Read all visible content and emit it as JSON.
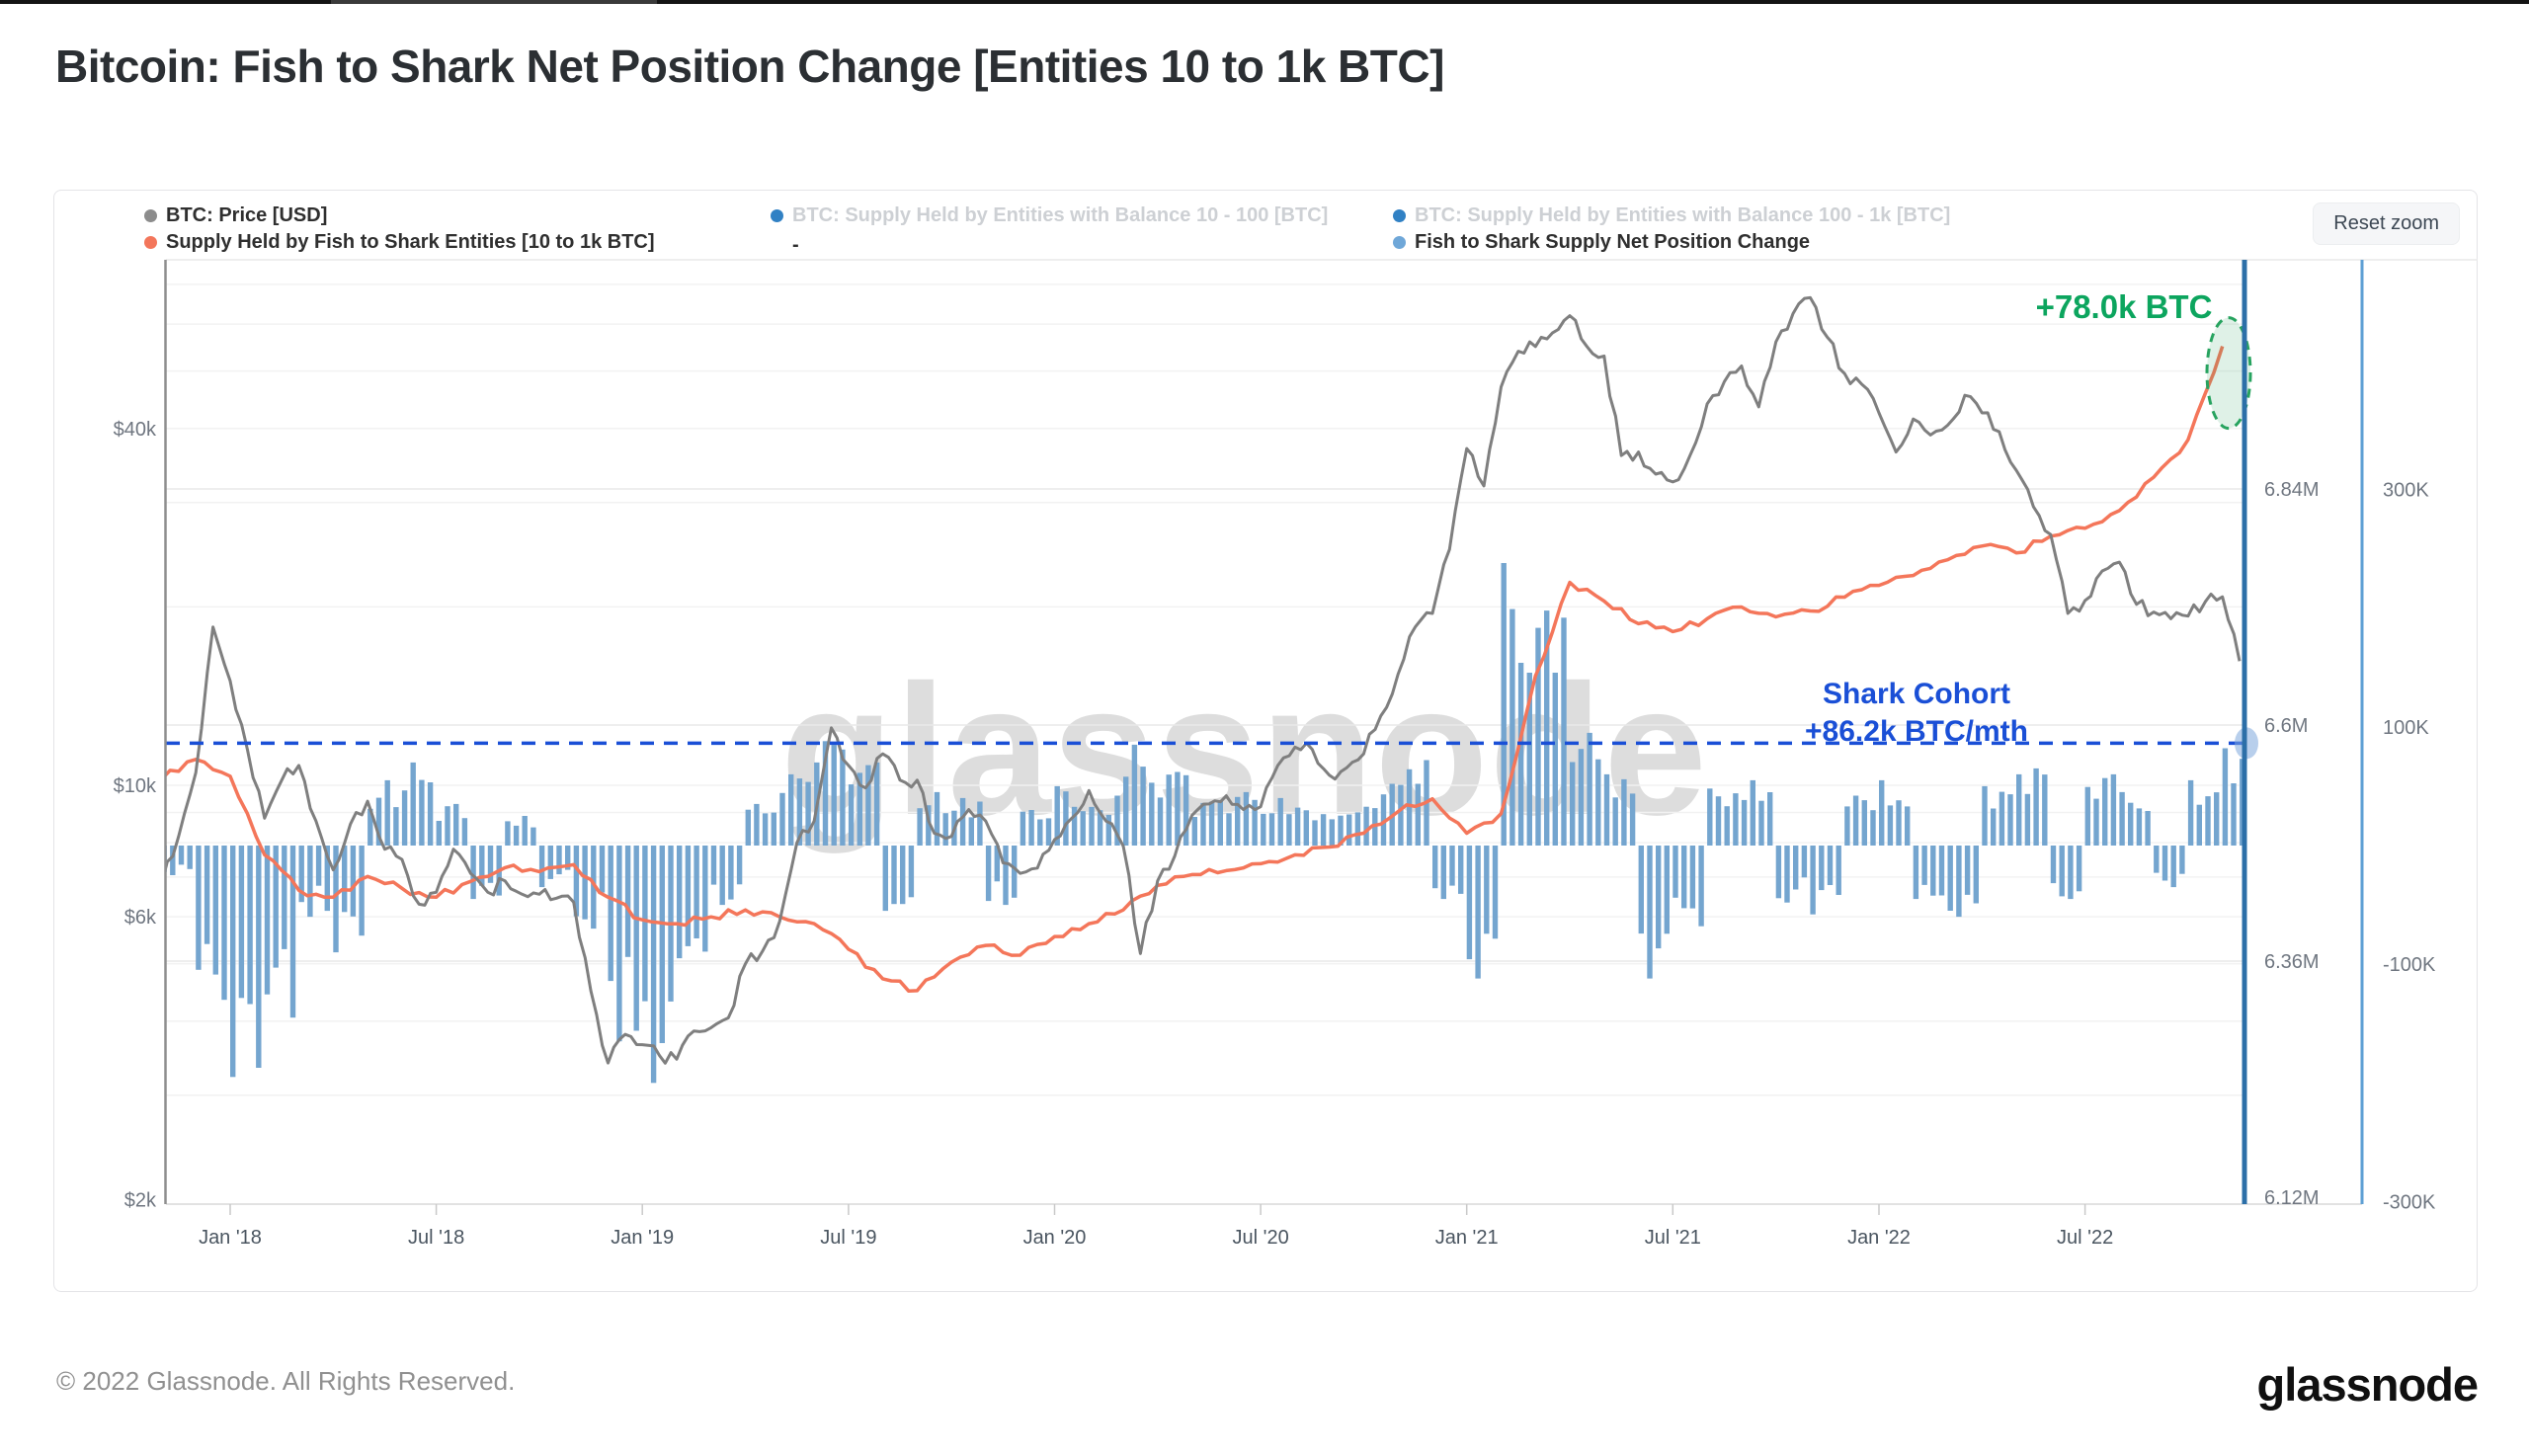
{
  "title": "Bitcoin: Fish to Shark Net Position Change [Entities 10 to 1k BTC]",
  "toolbar": {
    "reset_zoom_label": "Reset zoom"
  },
  "legend": {
    "items": [
      {
        "label": "BTC: Price [USD]",
        "dot": "#8c8c8c",
        "active": true
      },
      {
        "label": "Supply Held by Fish to Shark Entities [10 to 1k BTC]",
        "dot": "#f3765b",
        "active": true
      },
      {
        "label": "BTC: Supply Held by Entities with Balance 10 - 100 [BTC]",
        "dot": "#3181c4",
        "active": false
      },
      {
        "label": "-",
        "dot": null,
        "active": true
      },
      {
        "label": "BTC: Supply Held by Entities with Balance 100 - 1k [BTC]",
        "dot": "#3181c4",
        "active": false
      },
      {
        "label": "Fish to Shark Supply Net Position Change",
        "dot": "#6fa7d8",
        "active": true
      }
    ]
  },
  "annotations": {
    "price_spike_label": "+78.0k BTC",
    "shark_line1": "Shark Cohort",
    "shark_line2": "+86.2k BTC/mth"
  },
  "watermark": "glassnode",
  "footer": {
    "copyright": "© 2022 Glassnode. All Rights Reserved.",
    "logo_text": "glassnode"
  },
  "colors": {
    "price_line": "#7f7f7f",
    "supply_line": "#f4765a",
    "net_bars": "#74a5cf",
    "right_axis_dark_blue": "#2c6fa8",
    "right_axis_light_blue": "#5e9fd4",
    "left_axis_gray": "#8e8e8e",
    "dashed_reference_blue": "#1a4fd6",
    "annotation_green": "#0ca55e",
    "highlight_ellipse_green": "#27a35f",
    "inactive_legend_text": "#cdd0d4",
    "active_legend_text": "#2f2f2f",
    "axis_label_gray": "#6f7680",
    "x_label_gray": "#4a5560"
  },
  "chart_data": {
    "type": "mixed",
    "title": "Bitcoin: Fish to Shark Net Position Change [Entities 10 to 1k BTC]",
    "x_axis": {
      "start_month": "2017-11",
      "end_month": "2022-11",
      "tick_labels": [
        "Jan '18",
        "Jul '18",
        "Jan '19",
        "Jul '19",
        "Jan '20",
        "Jul '20",
        "Jan '21",
        "Jul '21",
        "Jan '22",
        "Jul '22"
      ]
    },
    "y_axis_price": {
      "scale": "log",
      "ticks": [
        "$40k",
        "$10k",
        "$6k",
        "$2k"
      ],
      "values": [
        40000,
        10000,
        6000,
        2000
      ],
      "range": [
        2000,
        77000
      ]
    },
    "y_axis_supply": {
      "scale": "linear",
      "ticks": [
        "6.84M",
        "6.6M",
        "6.36M",
        "6.12M"
      ],
      "values": [
        6.84,
        6.6,
        6.36,
        6.12
      ],
      "range": [
        6.11,
        7.07
      ],
      "unit": "M BTC"
    },
    "y_axis_net": {
      "scale": "linear",
      "ticks": [
        "300K",
        "100K",
        "-100K",
        "-300K"
      ],
      "values": [
        300,
        100,
        -100,
        -300
      ],
      "range": [
        -302,
        493
      ],
      "unit": "K BTC/month"
    },
    "series": [
      {
        "name": "BTC: Price [USD]",
        "type": "line",
        "axis": "y_axis_price",
        "color": "#7f7f7f",
        "x_start_month_offset": -2,
        "x_step_months": 0.5,
        "values": [
          6800,
          8200,
          10500,
          18500,
          15000,
          11500,
          8800,
          10200,
          10800,
          8700,
          7200,
          8600,
          9400,
          7800,
          7500,
          6300,
          6600,
          7800,
          7100,
          6600,
          6900,
          6550,
          6550,
          6450,
          6350,
          4500,
          3400,
          3800,
          3650,
          3500,
          3450,
          3850,
          3900,
          4050,
          5000,
          5250,
          5900,
          8000,
          8700,
          12500,
          10800,
          9900,
          11300,
          10200,
          10200,
          8300,
          8200,
          9100,
          8700,
          7400,
          7100,
          7250,
          8100,
          8800,
          9800,
          8700,
          7900,
          5200,
          6900,
          7600,
          8900,
          9300,
          9600,
          9100,
          9200,
          10800,
          11600,
          11500,
          10400,
          10700,
          11300,
          13100,
          15400,
          18500,
          19500,
          25000,
          37000,
          32000,
          47000,
          54000,
          55000,
          58000,
          62000,
          55000,
          53000,
          36000,
          36500,
          33500,
          32500,
          36000,
          44000,
          48000,
          51000,
          43500,
          56000,
          62500,
          66500,
          57000,
          49500,
          47500,
          42500,
          36500,
          41500,
          39000,
          40500,
          45500,
          42500,
          39500,
          34000,
          29500,
          26500,
          19500,
          20500,
          23000,
          23800,
          20200,
          19600,
          19100,
          19300,
          20400,
          20800,
          16200
        ]
      },
      {
        "name": "Supply Held by Fish to Shark Entities [10 to 1k BTC]",
        "type": "line",
        "axis": "y_axis_supply",
        "color": "#f4765a",
        "x_start_month_offset": -2,
        "x_step_months": 1,
        "values": [
          6.545,
          6.565,
          6.548,
          6.468,
          6.432,
          6.425,
          6.446,
          6.434,
          6.425,
          6.441,
          6.455,
          6.451,
          6.458,
          6.425,
          6.402,
          6.398,
          6.405,
          6.412,
          6.405,
          6.398,
          6.372,
          6.342,
          6.33,
          6.359,
          6.376,
          6.366,
          6.385,
          6.398,
          6.412,
          6.437,
          6.448,
          6.452,
          6.459,
          6.468,
          6.476,
          6.49,
          6.512,
          6.525,
          6.49,
          6.51,
          6.65,
          6.745,
          6.726,
          6.703,
          6.695,
          6.708,
          6.72,
          6.71,
          6.716,
          6.73,
          6.742,
          6.752,
          6.768,
          6.782,
          6.775,
          6.792,
          6.8,
          6.818,
          6.852,
          6.89,
          6.985
        ]
      },
      {
        "name": "Fish to Shark Supply Net Position Change",
        "type": "bar",
        "axis": "y_axis_net",
        "color": "#74a5cf",
        "x_start_month_offset": -2,
        "x_step_months": 1,
        "values": [
          -25,
          -130,
          -195,
          -145,
          -60,
          -90,
          55,
          70,
          35,
          -45,
          25,
          -35,
          -70,
          -165,
          -200,
          -95,
          -50,
          35,
          60,
          88,
          70,
          -55,
          45,
          40,
          -50,
          30,
          50,
          42,
          85,
          62,
          38,
          45,
          40,
          32,
          28,
          52,
          72,
          -45,
          -112,
          238,
          198,
          95,
          60,
          -112,
          -68,
          48,
          55,
          -48,
          -58,
          42,
          55,
          -45,
          -60,
          50,
          65,
          -45,
          60,
          45,
          -35,
          55,
          86
        ]
      }
    ],
    "reference_line": {
      "axis": "y_axis_net",
      "value_k": 86.2,
      "style": "dashed",
      "color": "#1a4fd6",
      "label": "Shark Cohort +86.2k BTC/mth"
    },
    "highlight": {
      "label": "+78.0k BTC",
      "target": "end of supply series",
      "shape": "dashed-ellipse",
      "color": "#27a35f"
    },
    "legend_position": "top",
    "grid": true,
    "watermark": "glassnode"
  }
}
